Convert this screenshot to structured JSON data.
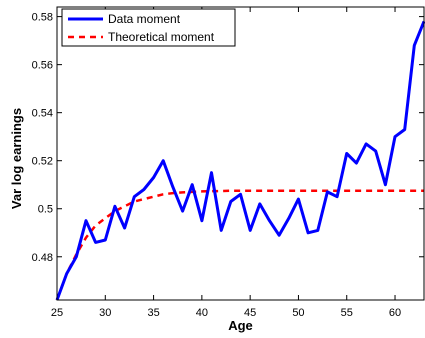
{
  "chart_data": {
    "type": "line",
    "xlabel": "Age",
    "ylabel": "Var log earnings",
    "xlim": [
      25,
      63
    ],
    "ylim": [
      0.462,
      0.584
    ],
    "xticks": [
      25,
      30,
      35,
      40,
      45,
      50,
      55,
      60
    ],
    "yticks": [
      0.48,
      0.5,
      0.52,
      0.54,
      0.56,
      0.58
    ],
    "ytick_labels": [
      "0.48",
      "0.5",
      "0.52",
      "0.54",
      "0.56",
      "0.58"
    ],
    "grid": false,
    "legend_position": "top-left",
    "x": [
      25,
      26,
      27,
      28,
      29,
      30,
      31,
      32,
      33,
      34,
      35,
      36,
      37,
      38,
      39,
      40,
      41,
      42,
      43,
      44,
      45,
      46,
      47,
      48,
      49,
      50,
      51,
      52,
      53,
      54,
      55,
      56,
      57,
      58,
      59,
      60,
      61,
      62,
      63
    ],
    "series": [
      {
        "name": "Data moment",
        "color": "#0000ff",
        "style": "solid",
        "values": [
          0.462,
          0.473,
          0.48,
          0.495,
          0.486,
          0.487,
          0.501,
          0.492,
          0.505,
          0.508,
          0.513,
          0.52,
          0.509,
          0.499,
          0.51,
          0.495,
          0.515,
          0.491,
          0.503,
          0.506,
          0.491,
          0.502,
          0.495,
          0.489,
          0.496,
          0.504,
          0.49,
          0.491,
          0.507,
          0.505,
          0.523,
          0.519,
          0.527,
          0.524,
          0.51,
          0.53,
          0.533,
          0.568,
          0.578
        ]
      },
      {
        "name": "Theoretical moment",
        "color": "#ff0000",
        "style": "dashed",
        "values": [
          0.462,
          0.473,
          0.481,
          0.488,
          0.493,
          0.496,
          0.499,
          0.501,
          0.503,
          0.504,
          0.505,
          0.506,
          0.5065,
          0.5068,
          0.507,
          0.5072,
          0.5073,
          0.5074,
          0.5075,
          0.5075,
          0.5075,
          0.5075,
          0.5075,
          0.5075,
          0.5075,
          0.5075,
          0.5075,
          0.5075,
          0.5075,
          0.5075,
          0.5075,
          0.5075,
          0.5075,
          0.5075,
          0.5075,
          0.5075,
          0.5075,
          0.5075,
          0.5075
        ]
      }
    ]
  }
}
